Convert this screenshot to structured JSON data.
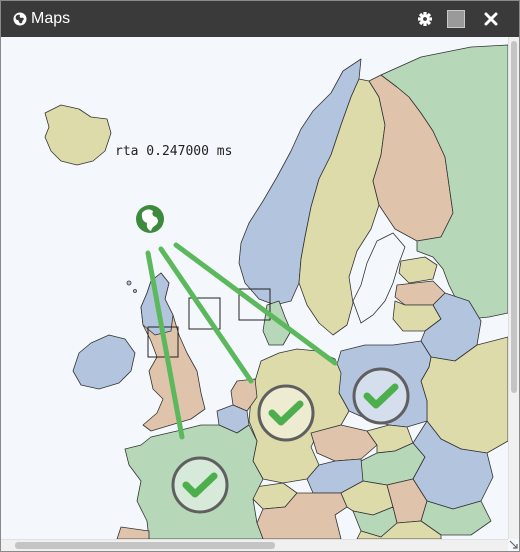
{
  "window": {
    "title": "Maps",
    "title_icon": "globe-icon",
    "controls": [
      "gear-icon",
      "maximize-icon",
      "close-icon"
    ]
  },
  "map": {
    "probe_label": "rta 0.247000 ms",
    "source_icon": "globe-icon",
    "status_icons": [
      "check-circle-icon",
      "check-circle-icon",
      "check-circle-icon"
    ],
    "colors": {
      "sea": "#f4f8fc",
      "link": "#5cb85c",
      "check": "#4cae4c",
      "source": "#3c8a3c"
    }
  }
}
